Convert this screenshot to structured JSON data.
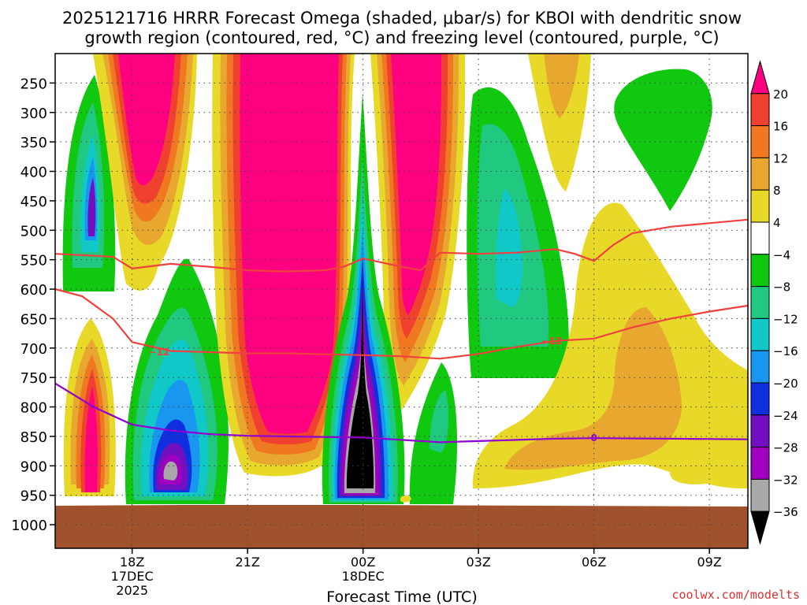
{
  "chart_data": {
    "type": "heatmap",
    "title": [
      "2025121716 HRRR Forecast Omega (shaded, μbar/s) for KBOI with dendritic snow",
      "growth region (contoured, red, °C) and freezing level (contoured, purple, °C)"
    ],
    "xlabel": "Forecast Time (UTC)",
    "ylabel": "",
    "credit": "coolwx.com/modelts",
    "x_ticks": [
      {
        "hour": 18,
        "lines": [
          "18Z",
          "17DEC",
          "2025"
        ]
      },
      {
        "hour": 21,
        "lines": [
          "21Z"
        ]
      },
      {
        "hour": 24,
        "lines": [
          "00Z",
          "18DEC"
        ]
      },
      {
        "hour": 27,
        "lines": [
          "03Z"
        ]
      },
      {
        "hour": 30,
        "lines": [
          "06Z"
        ]
      },
      {
        "hour": 33,
        "lines": [
          "09Z"
        ]
      }
    ],
    "xlim": [
      16.0,
      34.0
    ],
    "y_ticks": [
      250,
      300,
      350,
      400,
      450,
      500,
      550,
      600,
      650,
      700,
      750,
      800,
      850,
      900,
      950,
      1000
    ],
    "ylim": [
      200,
      1040
    ],
    "grid": true,
    "colorbar": {
      "labels": [
        "20",
        "16",
        "12",
        "8",
        "4",
        "−4",
        "−8",
        "−12",
        "−16",
        "−20",
        "−24",
        "−28",
        "−32",
        "−36"
      ],
      "colors": [
        "#ff0080",
        "#f04030",
        "#f07820",
        "#e8a830",
        "#e8d828",
        "#ffffff",
        "#10c810",
        "#20c880",
        "#10c8c8",
        "#1896f0",
        "#1030e0",
        "#7010c0",
        "#a000c0",
        "#a8a8a8",
        "#000000"
      ]
    },
    "ground": {
      "color": "#a0522d"
    },
    "contours": [
      {
        "name": "",
        "value": -12,
        "label": "−12",
        "color": "#f04040",
        "points": [
          [
            16,
            540
          ],
          [
            17.5,
            545
          ],
          [
            18,
            565
          ],
          [
            19,
            557
          ],
          [
            20,
            562
          ],
          [
            21,
            568
          ],
          [
            22,
            570
          ],
          [
            23,
            568
          ],
          [
            23.5,
            562
          ],
          [
            24,
            548
          ],
          [
            25,
            562
          ],
          [
            25.5,
            568
          ],
          [
            26,
            538
          ],
          [
            27,
            540
          ],
          [
            28,
            538
          ],
          [
            29,
            532
          ],
          [
            29.5,
            540
          ],
          [
            30,
            552
          ],
          [
            30.5,
            525
          ],
          [
            31,
            505
          ],
          [
            32,
            494
          ],
          [
            34,
            482
          ]
        ]
      },
      {
        "name": "",
        "value": -12,
        "label": "−12",
        "color": "#f04040",
        "points": [
          [
            16,
            600
          ],
          [
            16.7,
            612
          ],
          [
            17.5,
            650
          ],
          [
            18,
            690
          ],
          [
            19,
            705
          ],
          [
            20,
            707
          ],
          [
            21,
            709
          ],
          [
            22,
            709
          ],
          [
            24,
            712
          ],
          [
            25,
            714
          ],
          [
            26,
            718
          ],
          [
            27,
            710
          ],
          [
            28,
            698
          ],
          [
            29,
            688
          ],
          [
            30,
            684
          ],
          [
            31,
            665
          ],
          [
            32,
            650
          ],
          [
            33,
            638
          ],
          [
            34,
            628
          ]
        ],
        "label_at": 1
      },
      {
        "name": "",
        "value": 0,
        "label": "0",
        "color": "#9000d0",
        "points": [
          [
            16,
            760
          ],
          [
            17,
            800
          ],
          [
            18,
            830
          ],
          [
            19,
            840
          ],
          [
            20,
            846
          ],
          [
            21,
            849
          ],
          [
            22,
            850
          ],
          [
            24,
            852
          ],
          [
            25,
            856
          ],
          [
            26,
            860
          ],
          [
            27,
            858
          ],
          [
            28,
            856
          ],
          [
            29,
            854
          ],
          [
            30,
            853
          ],
          [
            32,
            854
          ],
          [
            34,
            855
          ]
        ],
        "label_at": 2
      }
    ]
  }
}
